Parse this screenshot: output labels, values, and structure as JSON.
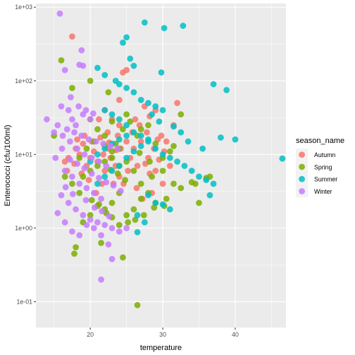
{
  "chart_data": {
    "type": "scatter",
    "xlabel": "temperature",
    "ylabel": "Enterococci (cfu/100ml)",
    "x_scale": "linear",
    "y_scale": "log10",
    "xlim": [
      12.5,
      47
    ],
    "ylim_log10": [
      -1.35,
      3.05
    ],
    "x_ticks": [
      20,
      30,
      40
    ],
    "x_tick_labels": [
      "20",
      "30",
      "40"
    ],
    "y_ticks_log10": [
      -1,
      0,
      1,
      2,
      3
    ],
    "y_tick_labels": [
      "1e-01",
      "1e+00",
      "1e+01",
      "1e+02",
      "1e+03"
    ],
    "grid": true,
    "legend": {
      "title": "season_name",
      "position": "right"
    },
    "series": [
      {
        "name": "Autumn",
        "color": "#F8766D",
        "points": [
          [
            17.5,
            400
          ],
          [
            24.5,
            130
          ],
          [
            25,
            140
          ],
          [
            27.5,
            45
          ],
          [
            28.2,
            33
          ],
          [
            29,
            40
          ],
          [
            29.8,
            18
          ],
          [
            30.5,
            15
          ],
          [
            24,
            25
          ],
          [
            23,
            30
          ],
          [
            22.5,
            12
          ],
          [
            21.8,
            10
          ],
          [
            21,
            8
          ],
          [
            20.5,
            11
          ],
          [
            20,
            9
          ],
          [
            19.5,
            7
          ],
          [
            19,
            14
          ],
          [
            18.5,
            10
          ],
          [
            18,
            12
          ],
          [
            17,
            9
          ],
          [
            16.5,
            8
          ],
          [
            22,
            6
          ],
          [
            23.2,
            4
          ],
          [
            24,
            5
          ],
          [
            25.5,
            9
          ],
          [
            26,
            12
          ],
          [
            27,
            15
          ],
          [
            26.5,
            7
          ],
          [
            28,
            9
          ],
          [
            29,
            6
          ],
          [
            31,
            7
          ],
          [
            30,
            4
          ],
          [
            28.5,
            3
          ],
          [
            27.2,
            2.5
          ],
          [
            26.4,
            3.5
          ],
          [
            25,
            15
          ],
          [
            24.2,
            12
          ],
          [
            23.5,
            7
          ],
          [
            22.8,
            9
          ],
          [
            21.6,
            4
          ],
          [
            20.8,
            3
          ],
          [
            19.8,
            4.5
          ],
          [
            18.8,
            5.5
          ],
          [
            17.8,
            7.5
          ],
          [
            16.8,
            6
          ],
          [
            21.2,
            30
          ],
          [
            22,
            40
          ],
          [
            24,
            55
          ],
          [
            26.2,
            30
          ],
          [
            27.8,
            20
          ],
          [
            31.5,
            25
          ],
          [
            32,
            50
          ],
          [
            25.8,
            20
          ],
          [
            28.8,
            12
          ],
          [
            29.5,
            8.5
          ],
          [
            23.8,
            18
          ],
          [
            22.4,
            20
          ],
          [
            21.4,
            17
          ],
          [
            20.2,
            15
          ],
          [
            19.2,
            18
          ],
          [
            18.2,
            16
          ],
          [
            25.2,
            6
          ],
          [
            24.6,
            4
          ],
          [
            27.6,
            7.5
          ],
          [
            28.2,
            5.5
          ],
          [
            30.2,
            11
          ],
          [
            29.3,
            16
          ],
          [
            26.8,
            25
          ],
          [
            23.6,
            11.5
          ],
          [
            22.6,
            14.5
          ]
        ]
      },
      {
        "name": "Spring",
        "color": "#7CAE00",
        "points": [
          [
            16,
            190
          ],
          [
            17.5,
            80
          ],
          [
            20,
            100
          ],
          [
            22.5,
            70
          ],
          [
            26.5,
            0.09
          ],
          [
            24.5,
            0.4
          ],
          [
            21.5,
            0.63
          ],
          [
            18,
            0.55
          ],
          [
            17.8,
            0.45
          ],
          [
            19,
            1.2
          ],
          [
            20,
            1.5
          ],
          [
            21,
            2
          ],
          [
            22,
            1.8
          ],
          [
            23,
            2.2
          ],
          [
            24,
            3
          ],
          [
            25,
            1.5
          ],
          [
            26,
            1.8
          ],
          [
            27,
            2.5
          ],
          [
            28,
            3
          ],
          [
            29,
            2.2
          ],
          [
            30.2,
            2
          ],
          [
            32.5,
            3.5
          ],
          [
            34,
            4.2
          ],
          [
            35,
            2.2
          ],
          [
            36.5,
            5
          ],
          [
            31.5,
            4
          ],
          [
            30,
            6
          ],
          [
            28.5,
            5
          ],
          [
            27,
            4
          ],
          [
            26,
            6
          ],
          [
            25,
            8
          ],
          [
            24,
            7
          ],
          [
            23,
            9
          ],
          [
            22,
            8
          ],
          [
            21,
            7
          ],
          [
            20,
            6
          ],
          [
            19,
            5
          ],
          [
            18.5,
            3
          ],
          [
            17.5,
            4
          ],
          [
            16.5,
            5
          ],
          [
            15,
            18
          ],
          [
            22,
            18
          ],
          [
            23.5,
            14
          ],
          [
            24.5,
            22
          ],
          [
            25.5,
            28
          ],
          [
            26.5,
            18
          ],
          [
            28,
            25
          ],
          [
            29,
            14
          ],
          [
            30,
            9
          ],
          [
            31,
            11
          ],
          [
            24,
            12
          ],
          [
            23,
            11
          ],
          [
            22,
            13
          ],
          [
            20.5,
            15
          ],
          [
            19.5,
            12
          ],
          [
            18.5,
            9
          ],
          [
            20,
            30
          ],
          [
            21,
            22
          ],
          [
            23,
            28
          ],
          [
            25,
            35
          ],
          [
            27,
            22
          ],
          [
            31.5,
            13
          ],
          [
            32.5,
            35
          ],
          [
            34.5,
            4
          ],
          [
            36,
            4.8
          ],
          [
            30.5,
            2.5
          ],
          [
            28.8,
            1.9
          ],
          [
            27.4,
            1.5
          ],
          [
            26.2,
            1.3
          ],
          [
            25.2,
            1.2
          ],
          [
            24,
            1.1
          ],
          [
            23,
            1.4
          ],
          [
            22.2,
            1.6
          ],
          [
            21.2,
            2.1
          ],
          [
            20.2,
            2.4
          ],
          [
            26.8,
            10.5
          ],
          [
            28.2,
            8
          ],
          [
            24.8,
            4.5
          ],
          [
            23.8,
            5.5
          ],
          [
            22.8,
            6.2
          ]
        ]
      },
      {
        "name": "Summer",
        "color": "#00BFC4",
        "points": [
          [
            24.5,
            330
          ],
          [
            25,
            390
          ],
          [
            27.5,
            620
          ],
          [
            30.2,
            520
          ],
          [
            32.8,
            560
          ],
          [
            25.5,
            200
          ],
          [
            26,
            160
          ],
          [
            29.8,
            130
          ],
          [
            21,
            150
          ],
          [
            22,
            120
          ],
          [
            23.5,
            100
          ],
          [
            24,
            90
          ],
          [
            25,
            80
          ],
          [
            26,
            70
          ],
          [
            27,
            55
          ],
          [
            28,
            50
          ],
          [
            29,
            45
          ],
          [
            30,
            40
          ],
          [
            22,
            40
          ],
          [
            23,
            35
          ],
          [
            24,
            30
          ],
          [
            25,
            25
          ],
          [
            26,
            20
          ],
          [
            27,
            18
          ],
          [
            28,
            15
          ],
          [
            29,
            12
          ],
          [
            30,
            10
          ],
          [
            31,
            9
          ],
          [
            32,
            8
          ],
          [
            33,
            7
          ],
          [
            34,
            6
          ],
          [
            35,
            5
          ],
          [
            36,
            4.5
          ],
          [
            37,
            4
          ],
          [
            38,
            17
          ],
          [
            40,
            16
          ],
          [
            46.5,
            8.8
          ],
          [
            35.5,
            12
          ],
          [
            37,
            90
          ],
          [
            38.8,
            75
          ],
          [
            28,
            2.8
          ],
          [
            29,
            2.2
          ],
          [
            30,
            2.1
          ],
          [
            31,
            1.8
          ],
          [
            26.5,
            1.5
          ],
          [
            27.5,
            1.2
          ],
          [
            26.5,
            0.88
          ],
          [
            21,
            4
          ],
          [
            22,
            5
          ],
          [
            23,
            6
          ],
          [
            24,
            7
          ],
          [
            25,
            9
          ],
          [
            26,
            11
          ],
          [
            27,
            13
          ],
          [
            28,
            16
          ],
          [
            20,
            8
          ],
          [
            21,
            10
          ],
          [
            22,
            12
          ],
          [
            23,
            14
          ],
          [
            24,
            16
          ],
          [
            25,
            18
          ],
          [
            36.5,
            2.8
          ],
          [
            28.5,
            35
          ],
          [
            29.5,
            28
          ],
          [
            31.5,
            24
          ],
          [
            32.5,
            20
          ],
          [
            33.5,
            15
          ]
        ]
      },
      {
        "name": "Winter",
        "color": "#C77CFF",
        "points": [
          [
            15.8,
            820
          ],
          [
            18.8,
            260
          ],
          [
            18.5,
            165
          ],
          [
            19,
            160
          ],
          [
            16.5,
            140
          ],
          [
            17.5,
            30
          ],
          [
            18,
            25
          ],
          [
            16,
            45
          ],
          [
            17,
            40
          ],
          [
            19,
            35
          ],
          [
            20,
            30
          ],
          [
            15,
            20
          ],
          [
            16.2,
            18
          ],
          [
            17.2,
            15
          ],
          [
            18.2,
            12
          ],
          [
            19.2,
            10
          ],
          [
            20.2,
            9
          ],
          [
            21.2,
            8
          ],
          [
            22.2,
            7
          ],
          [
            16.5,
            6
          ],
          [
            17.5,
            5
          ],
          [
            18.5,
            4
          ],
          [
            19.5,
            3.5
          ],
          [
            20.5,
            3
          ],
          [
            21.5,
            2.5
          ],
          [
            16,
            2.8
          ],
          [
            17,
            2.2
          ],
          [
            18,
            1.8
          ],
          [
            19,
            1.5
          ],
          [
            20,
            1.3
          ],
          [
            21,
            1.2
          ],
          [
            22,
            1.1
          ],
          [
            23,
            1.0
          ],
          [
            24,
            0.9
          ],
          [
            15.5,
            1.6
          ],
          [
            16.5,
            1.2
          ],
          [
            17.5,
            0.9
          ],
          [
            18.5,
            0.8
          ],
          [
            19.5,
            1.1
          ],
          [
            20.5,
            1.0
          ],
          [
            21.5,
            0.8
          ],
          [
            22.5,
            0.6
          ],
          [
            25,
            1.0
          ],
          [
            23,
            0.38
          ],
          [
            21.5,
            0.2
          ],
          [
            14,
            30
          ],
          [
            15.5,
            25
          ],
          [
            16.8,
            22
          ],
          [
            17.8,
            20
          ],
          [
            18.8,
            18
          ],
          [
            19.8,
            16
          ],
          [
            20.8,
            15
          ],
          [
            21.8,
            14
          ],
          [
            22.8,
            13
          ],
          [
            23.8,
            12
          ],
          [
            17.2,
            8.5
          ],
          [
            18.2,
            7.5
          ],
          [
            19.2,
            6.5
          ],
          [
            20.2,
            5.5
          ],
          [
            21.2,
            4.8
          ],
          [
            22.2,
            4.2
          ],
          [
            23.2,
            3.8
          ],
          [
            24.2,
            3.2
          ],
          [
            16.6,
            3.6
          ],
          [
            17.6,
            2.9
          ],
          [
            19.4,
            2.4
          ],
          [
            20.6,
            1.9
          ],
          [
            21.6,
            1.7
          ],
          [
            22.6,
            1.45
          ],
          [
            18.4,
            45
          ],
          [
            19.4,
            40
          ],
          [
            20.4,
            36
          ],
          [
            17.3,
            60
          ],
          [
            16.1,
            12
          ],
          [
            15.2,
            9
          ]
        ]
      }
    ]
  }
}
